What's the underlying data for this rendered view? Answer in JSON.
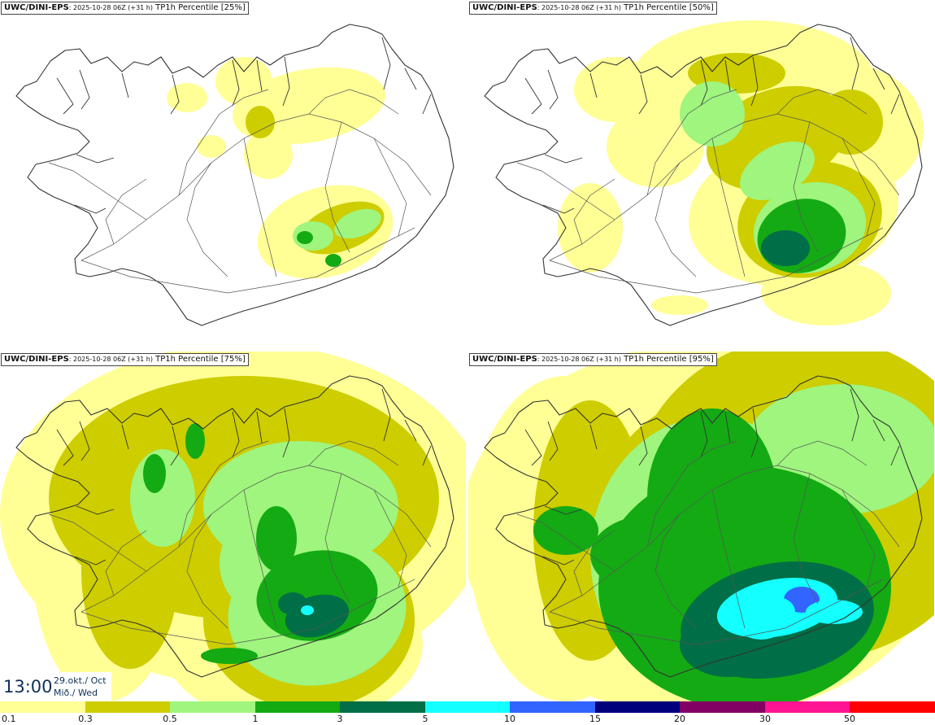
{
  "panels": [
    {
      "model": "UWC/DINI-EPS",
      "run": ": 2025-10-28 06Z (+31 h)",
      "field": " TP1h Percentile [25%]"
    },
    {
      "model": "UWC/DINI-EPS",
      "run": ": 2025-10-28 06Z (+31 h)",
      "field": " TP1h Percentile [50%]"
    },
    {
      "model": "UWC/DINI-EPS",
      "run": ": 2025-10-28 06Z (+31 h)",
      "field": " TP1h Percentile [75%]"
    },
    {
      "model": "UWC/DINI-EPS",
      "run": ": 2025-10-28 06Z (+31 h)",
      "field": " TP1h Percentile [95%]"
    }
  ],
  "valid_time": {
    "time": "13:00",
    "date_line1": "29.okt./ Oct",
    "date_line2": "Mið./ Wed"
  },
  "legend": {
    "labels": [
      "0.1",
      "0.3",
      "0.5",
      "1",
      "3",
      "5",
      "10",
      "15",
      "20",
      "30",
      "50"
    ],
    "colors": [
      "#ffff96",
      "#cdcd00",
      "#9ff57d",
      "#14aa14",
      "#006e46",
      "#14ffff",
      "#3264ff",
      "#00007d",
      "#820064",
      "#ff1493",
      "#ff0000"
    ]
  },
  "icons": [
    "iceland-outline-map",
    "road-network-lines"
  ]
}
